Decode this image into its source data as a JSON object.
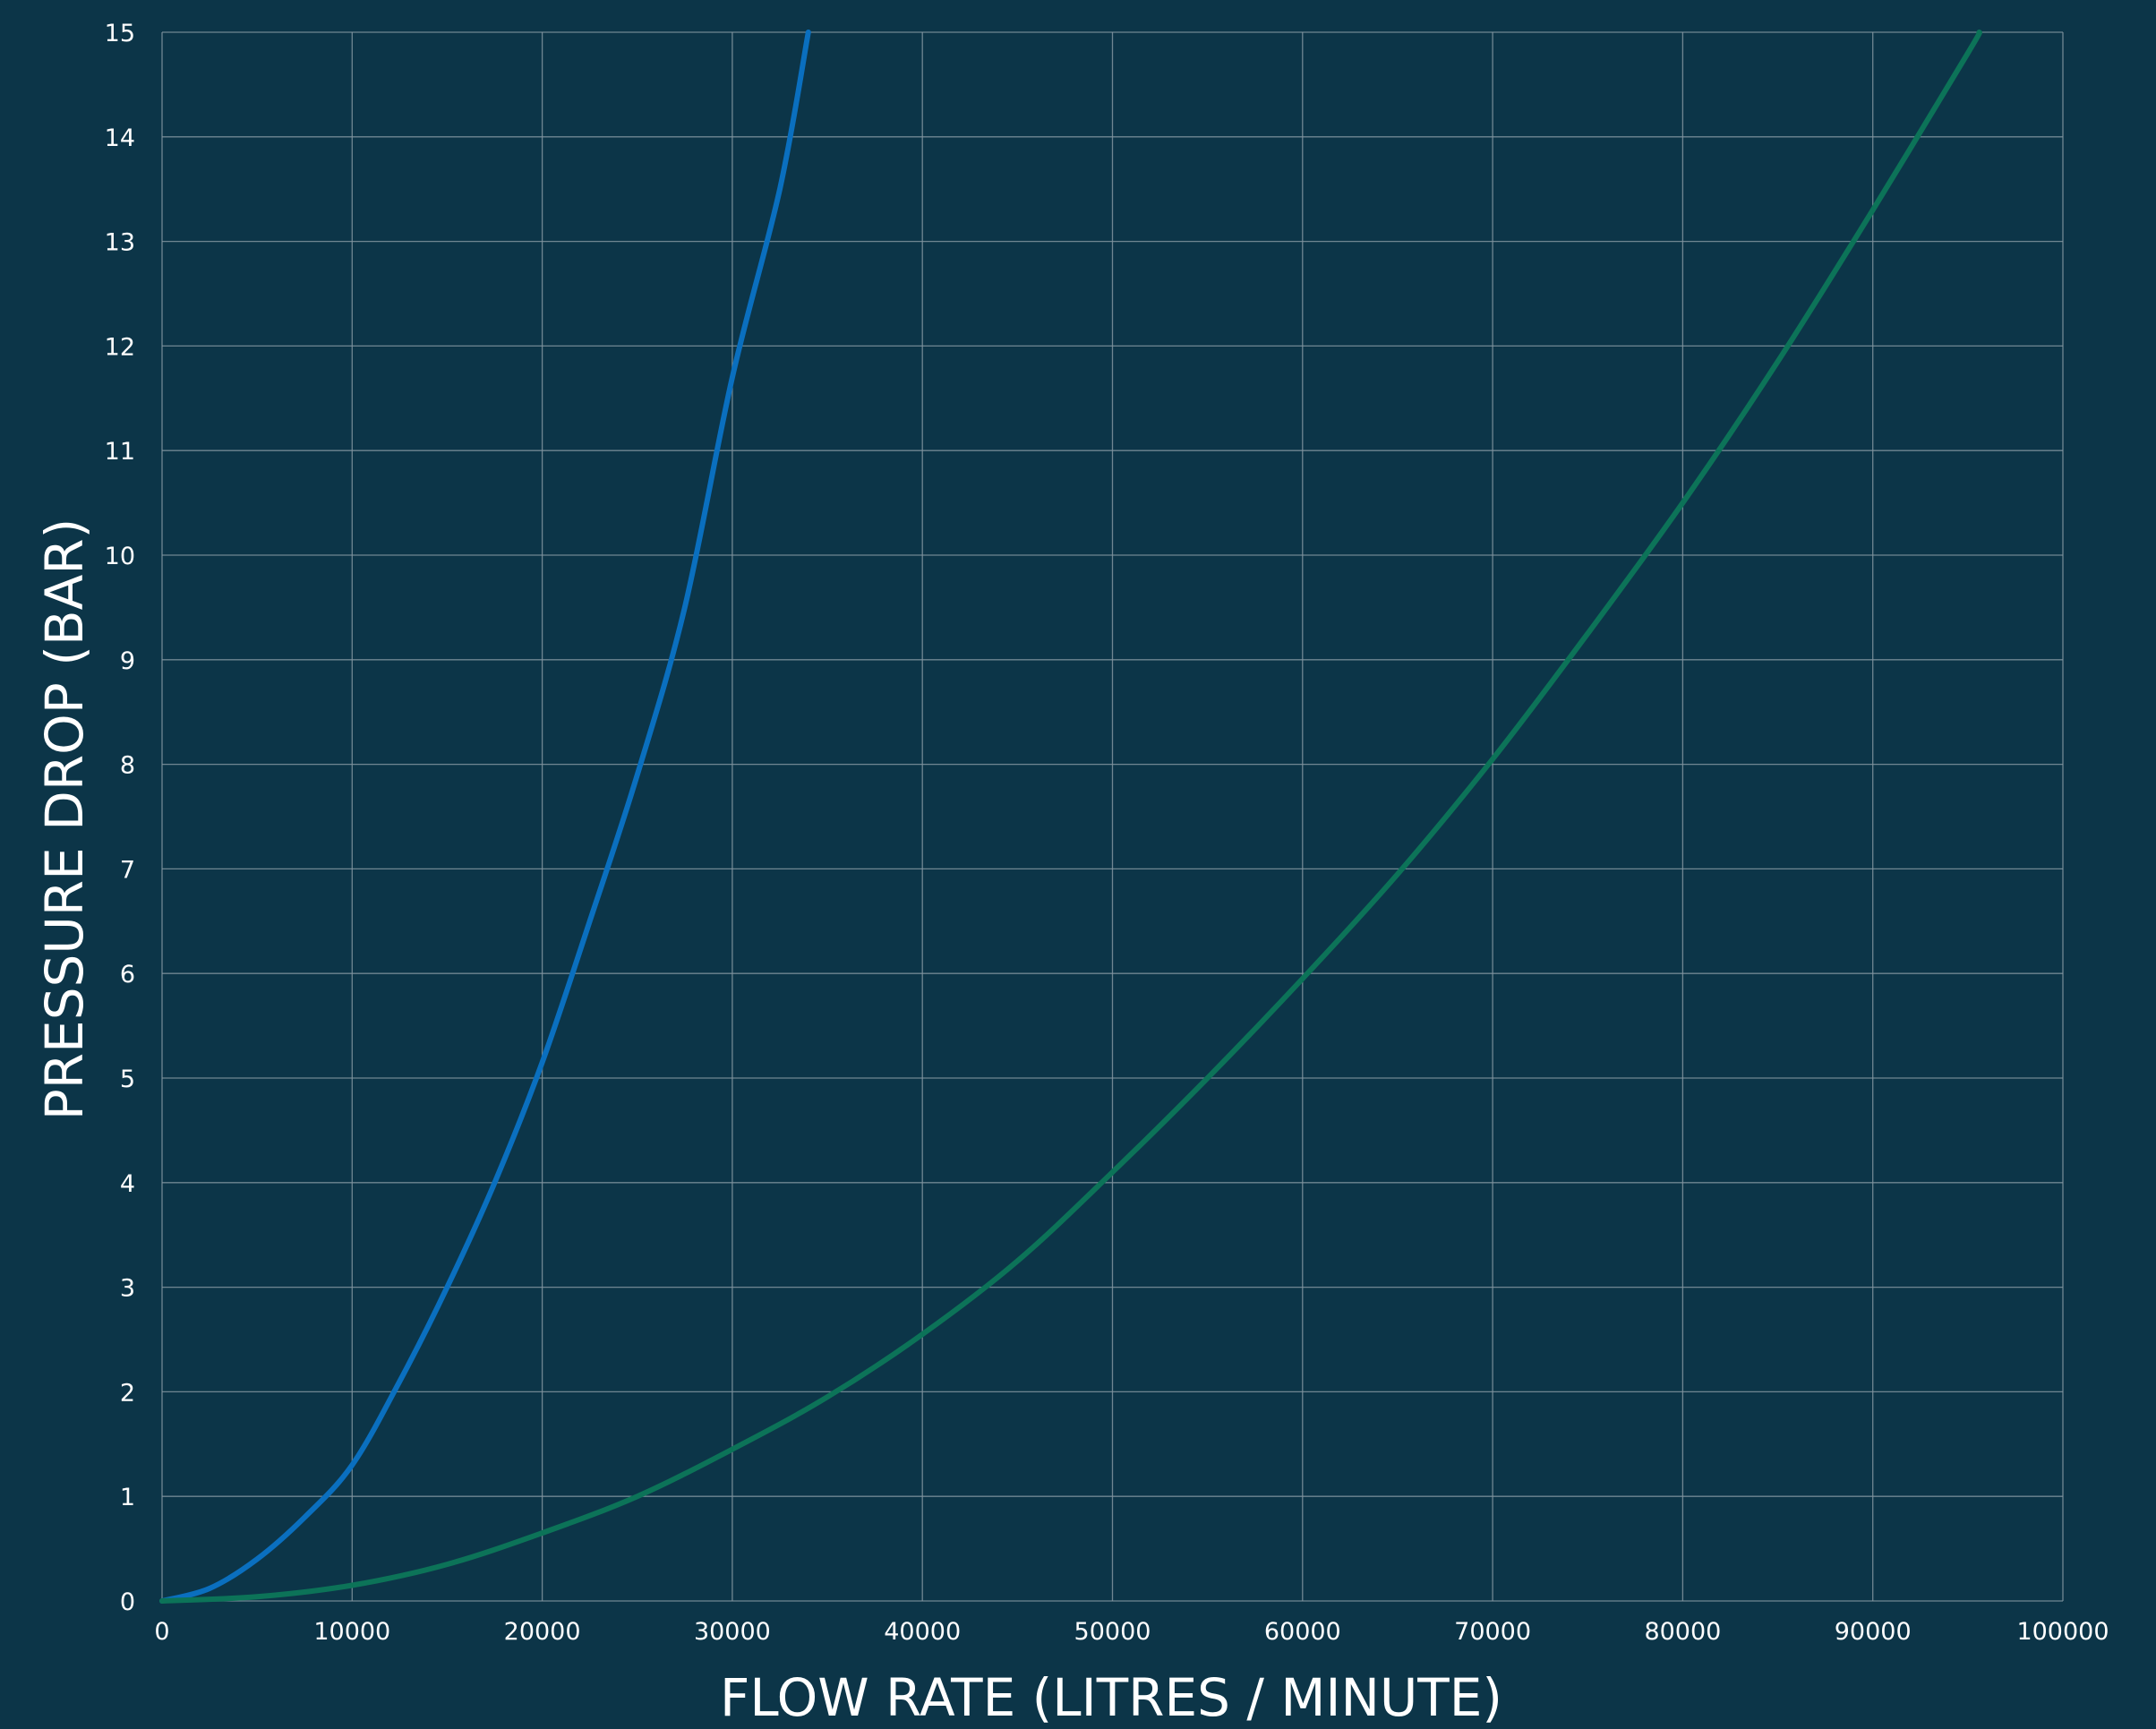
{
  "chart_data": {
    "type": "line",
    "title": "",
    "xlabel": "FLOW RATE (LITRES / MINUTE)",
    "ylabel": "PRESSURE DROP (BAR)",
    "xlim": [
      0,
      100000
    ],
    "ylim": [
      0,
      15
    ],
    "x_ticks": [
      "0",
      "10000",
      "20000",
      "30000",
      "40000",
      "50000",
      "60000",
      "70000",
      "80000",
      "90000",
      "100000"
    ],
    "y_ticks": [
      "0",
      "1",
      "2",
      "3",
      "4",
      "5",
      "6",
      "7",
      "8",
      "9",
      "10",
      "11",
      "12",
      "13",
      "14",
      "15"
    ],
    "grid": true,
    "legend": "none",
    "background_color": "#0c3548",
    "grid_color": "#8295a0",
    "series": [
      {
        "color": "#0a6fbf",
        "x": [
          0,
          2500,
          5000,
          7500,
          10000,
          12500,
          15000,
          17500,
          20000,
          22500,
          25000,
          27500,
          30000,
          32500,
          34000
        ],
        "y": [
          0,
          0.12,
          0.4,
          0.8,
          1.3,
          2.1,
          3.0,
          4.0,
          5.15,
          6.5,
          7.9,
          9.5,
          11.7,
          13.5,
          15.0
        ]
      },
      {
        "color": "#0c7358",
        "x": [
          0,
          5000,
          10000,
          15000,
          20000,
          25000,
          30000,
          35000,
          40000,
          45000,
          50000,
          55000,
          60000,
          65000,
          70000,
          75000,
          80000,
          85000,
          90000,
          95000,
          95600
        ],
        "y": [
          0,
          0.04,
          0.15,
          0.35,
          0.65,
          1.0,
          1.45,
          1.95,
          2.55,
          3.25,
          4.1,
          5.0,
          5.95,
          6.95,
          8.05,
          9.25,
          10.5,
          11.85,
          13.3,
          14.8,
          15.0
        ]
      }
    ]
  }
}
